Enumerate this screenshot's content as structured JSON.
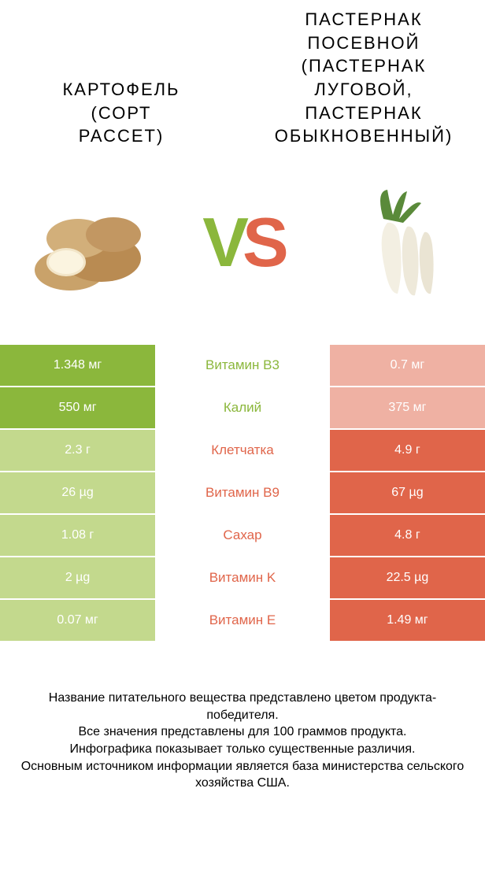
{
  "colors": {
    "green": "#8bb73c",
    "orange": "#e0654a",
    "green_light": "#c3d98d",
    "orange_light": "#efb1a3",
    "white": "#ffffff",
    "black": "#000000"
  },
  "titles": {
    "left_line1": "Картофель",
    "left_line2": "(сорт",
    "left_line3": "Рассет)",
    "left_fontsize": 22,
    "right_line1": "Пастернак",
    "right_line2": "посевной",
    "right_line3": "(Пастернак",
    "right_line4": "луговой,",
    "right_line5": "Пастернак",
    "right_line6": "обыкновенный)",
    "right_fontsize": 22
  },
  "vs": {
    "v": "V",
    "s": "S"
  },
  "rows": [
    {
      "left": "1.348 мг",
      "label": "Витамин B3",
      "right": "0.7 мг",
      "winner": "left"
    },
    {
      "left": "550 мг",
      "label": "Калий",
      "right": "375 мг",
      "winner": "left"
    },
    {
      "left": "2.3 г",
      "label": "Клетчатка",
      "right": "4.9 г",
      "winner": "right"
    },
    {
      "left": "26 µg",
      "label": "Витамин B9",
      "right": "67 µg",
      "winner": "right"
    },
    {
      "left": "1.08 г",
      "label": "Сахар",
      "right": "4.8 г",
      "winner": "right"
    },
    {
      "left": "2 µg",
      "label": "Витамин K",
      "right": "22.5 µg",
      "winner": "right"
    },
    {
      "left": "0.07 мг",
      "label": "Витамин E",
      "right": "1.49 мг",
      "winner": "right"
    }
  ],
  "footer": {
    "l1": "Название питательного вещества представлено цветом продукта-победителя.",
    "l2": "Все значения представлены для 100 граммов продукта.",
    "l3": "Инфографика показывает только существенные различия.",
    "l4": "Основным источником информации является база министерства сельского хозяйства США."
  }
}
